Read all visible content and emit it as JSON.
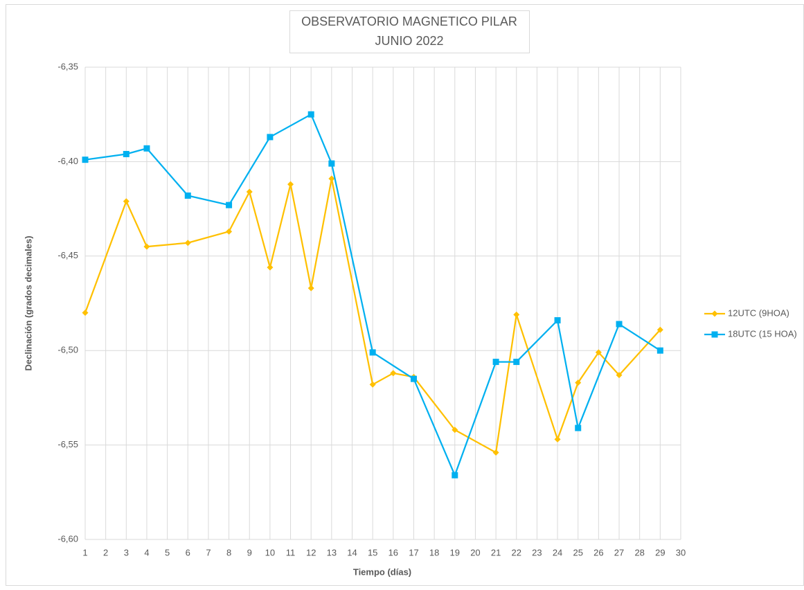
{
  "chart_data": {
    "type": "line",
    "title": "OBSERVATORIO MAGNETICO PILAR",
    "subtitle": "JUNIO 2022",
    "x_label": "Tiempo (días)",
    "y_label": "Declinación (grados decimales)",
    "xlim": [
      1,
      30
    ],
    "xticks": [
      1,
      2,
      3,
      4,
      5,
      6,
      7,
      8,
      9,
      10,
      11,
      12,
      13,
      14,
      15,
      16,
      17,
      18,
      19,
      20,
      21,
      22,
      23,
      24,
      25,
      26,
      27,
      28,
      29,
      30
    ],
    "ylim": [
      -6.6,
      -6.35
    ],
    "yticks": [
      {
        "value": -6.6,
        "label": "-6,60"
      },
      {
        "value": -6.55,
        "label": "-6,55"
      },
      {
        "value": -6.5,
        "label": "-6,50"
      },
      {
        "value": -6.45,
        "label": "-6,45"
      },
      {
        "value": -6.4,
        "label": "-6,40"
      },
      {
        "value": -6.35,
        "label": "-6,35"
      }
    ],
    "grid": true,
    "legend": "right",
    "series": [
      {
        "name": "12UTC (9HOA)",
        "color": "#FFC000",
        "marker": "diamond",
        "x": [
          1,
          3,
          4,
          6,
          8,
          9,
          10,
          11,
          12,
          13,
          15,
          16,
          17,
          19,
          21,
          22,
          24,
          25,
          26,
          27,
          29
        ],
        "values": [
          -6.48,
          -6.421,
          -6.445,
          -6.443,
          -6.437,
          -6.416,
          -6.456,
          -6.412,
          -6.467,
          -6.409,
          -6.518,
          -6.512,
          -6.514,
          -6.542,
          -6.554,
          -6.481,
          -6.547,
          -6.517,
          -6.501,
          -6.513,
          -6.489
        ]
      },
      {
        "name": "18UTC (15 HOA)",
        "color": "#00B0F0",
        "marker": "square",
        "x": [
          1,
          3,
          4,
          6,
          8,
          10,
          12,
          13,
          15,
          17,
          19,
          21,
          22,
          24,
          25,
          27,
          29
        ],
        "values": [
          -6.399,
          -6.396,
          -6.393,
          -6.418,
          -6.423,
          -6.387,
          -6.375,
          -6.401,
          -6.501,
          -6.515,
          -6.566,
          -6.506,
          -6.506,
          -6.484,
          -6.541,
          -6.486,
          -6.5
        ]
      }
    ]
  }
}
